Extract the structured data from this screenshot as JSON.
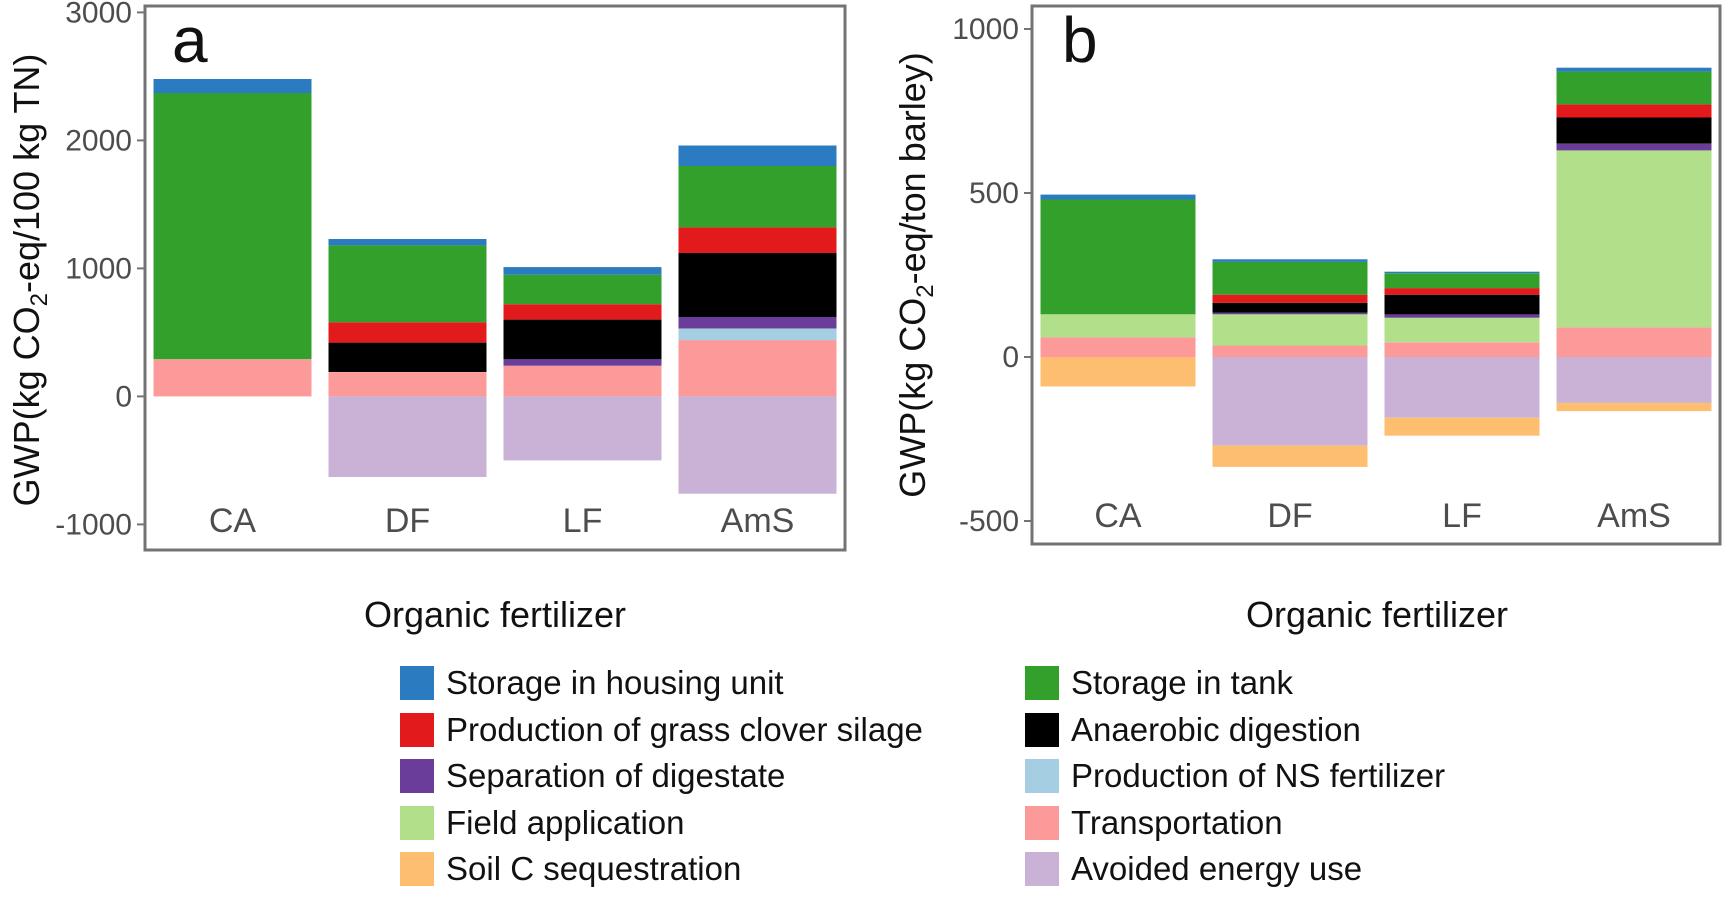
{
  "legend": [
    {
      "key": "housing",
      "label": "Storage in housing unit",
      "color": "#2a7bbf"
    },
    {
      "key": "tank",
      "label": "Storage in tank",
      "color": "#33a02c"
    },
    {
      "key": "grass",
      "label": "Production of grass clover silage",
      "color": "#e31a1c"
    },
    {
      "key": "ad",
      "label": "Anaerobic digestion",
      "color": "#000000"
    },
    {
      "key": "sep",
      "label": "Separation of digestate",
      "color": "#6a3d9a"
    },
    {
      "key": "ns",
      "label": "Production of NS fertilizer",
      "color": "#a6cee3"
    },
    {
      "key": "field",
      "label": "Field application",
      "color": "#b2df8a"
    },
    {
      "key": "transport",
      "label": "Transportation",
      "color": "#fb9a99"
    },
    {
      "key": "soilc",
      "label": "Soil C sequestration",
      "color": "#fdbf6f"
    },
    {
      "key": "avoided",
      "label": "Avoided energy use",
      "color": "#cab2d6"
    }
  ],
  "chart_data": [
    {
      "type": "bar",
      "stacked": true,
      "panel_label": "a",
      "categories": [
        "CA",
        "DF",
        "LF",
        "AmS"
      ],
      "xlabel": "Organic fertilizer",
      "ylabel_parts": [
        "GWP(kg CO",
        "2",
        "-eq/100 kg TN)"
      ],
      "ylim": [
        -1200,
        3050
      ],
      "yticks": [
        -1000,
        0,
        1000,
        2000,
        3000
      ],
      "grid": false,
      "series": [
        {
          "key": "transport",
          "values": [
            290,
            190,
            240,
            440
          ]
        },
        {
          "key": "field",
          "values": [
            0,
            0,
            0,
            0
          ]
        },
        {
          "key": "ns",
          "values": [
            0,
            0,
            0,
            90
          ]
        },
        {
          "key": "sep",
          "values": [
            0,
            0,
            50,
            90
          ]
        },
        {
          "key": "ad",
          "values": [
            0,
            230,
            310,
            500
          ]
        },
        {
          "key": "grass",
          "values": [
            0,
            160,
            120,
            200
          ]
        },
        {
          "key": "tank",
          "values": [
            2080,
            600,
            230,
            480
          ]
        },
        {
          "key": "housing",
          "values": [
            110,
            50,
            60,
            160
          ]
        },
        {
          "key": "soilc",
          "values": [
            0,
            0,
            0,
            0
          ]
        },
        {
          "key": "avoided",
          "values": [
            0,
            -630,
            -500,
            -760
          ]
        }
      ]
    },
    {
      "type": "bar",
      "stacked": true,
      "panel_label": "b",
      "categories": [
        "CA",
        "DF",
        "LF",
        "AmS"
      ],
      "xlabel": "Organic fertilizer",
      "ylabel_parts": [
        "GWP(kg CO",
        "2",
        "-eq/ton barley)"
      ],
      "ylim": [
        -570,
        1070
      ],
      "yticks": [
        -500,
        0,
        500,
        1000
      ],
      "grid": false,
      "series": [
        {
          "key": "transport",
          "values": [
            60,
            35,
            45,
            90
          ]
        },
        {
          "key": "field",
          "values": [
            70,
            95,
            75,
            540
          ]
        },
        {
          "key": "ns",
          "values": [
            0,
            0,
            0,
            0
          ]
        },
        {
          "key": "sep",
          "values": [
            0,
            5,
            10,
            20
          ]
        },
        {
          "key": "ad",
          "values": [
            0,
            30,
            60,
            80
          ]
        },
        {
          "key": "grass",
          "values": [
            0,
            25,
            20,
            40
          ]
        },
        {
          "key": "tank",
          "values": [
            350,
            100,
            45,
            100
          ]
        },
        {
          "key": "housing",
          "values": [
            15,
            8,
            5,
            12
          ]
        },
        {
          "key": "avoided",
          "values": [
            0,
            -270,
            -185,
            -140
          ]
        },
        {
          "key": "soilc",
          "values": [
            -90,
            -65,
            -55,
            -25
          ]
        }
      ]
    }
  ]
}
